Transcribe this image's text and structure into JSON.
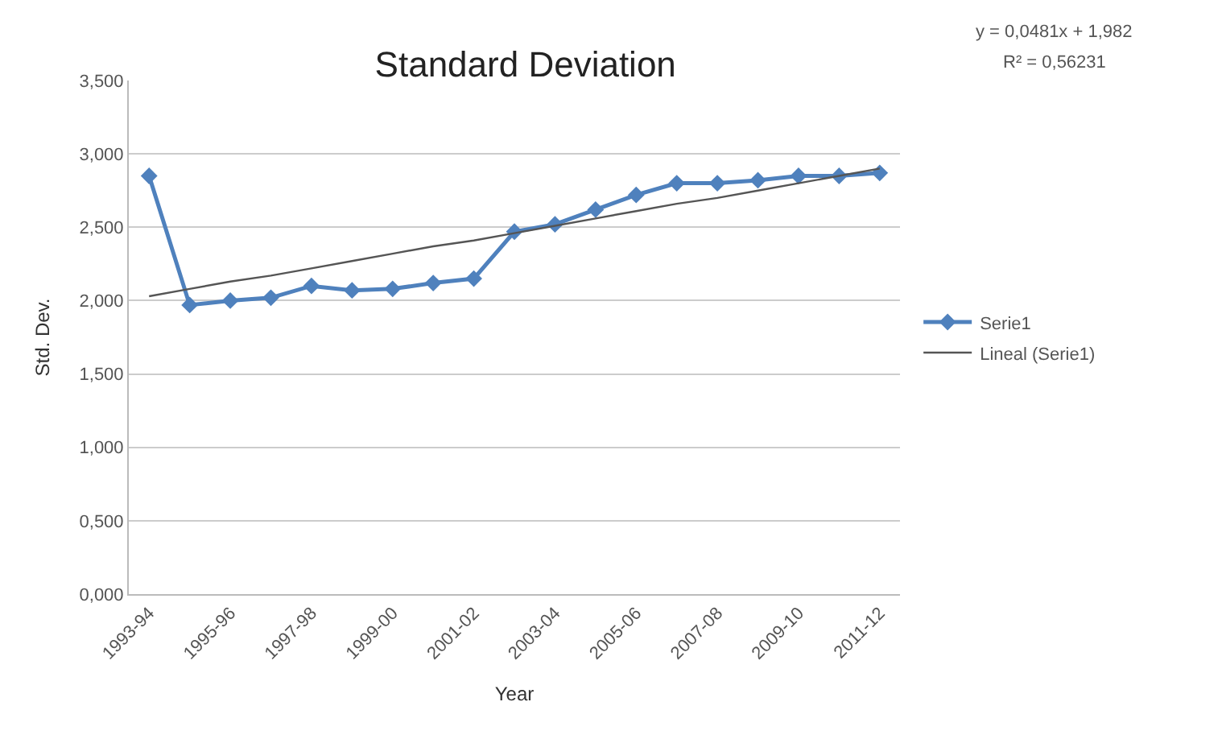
{
  "chart_data": {
    "type": "line",
    "title": "Standard Deviation",
    "xlabel": "Year",
    "ylabel": "Std. Dev.",
    "categories": [
      "1993-94",
      null,
      "1995-96",
      null,
      "1997-98",
      null,
      "1999-00",
      null,
      "2001-02",
      null,
      "2003-04",
      null,
      "2005-06",
      null,
      "2007-08",
      null,
      "2009-10",
      null,
      "2011-12"
    ],
    "series": [
      {
        "name": "Serie1",
        "color": "#4f81bd",
        "marker": "diamond",
        "values": [
          2.85,
          1.97,
          2.0,
          2.02,
          2.1,
          2.07,
          2.08,
          2.12,
          2.15,
          2.47,
          2.52,
          2.62,
          2.72,
          2.8,
          2.8,
          2.82,
          2.85,
          2.85,
          2.87
        ]
      },
      {
        "name": "Lineal (Serie1)",
        "color": "#555555",
        "marker": "none",
        "values": [
          2.03,
          2.08,
          2.13,
          2.17,
          2.22,
          2.27,
          2.32,
          2.37,
          2.41,
          2.46,
          2.51,
          2.56,
          2.61,
          2.66,
          2.7,
          2.75,
          2.8,
          2.85,
          2.9
        ]
      }
    ],
    "ylim": [
      0,
      3.5
    ],
    "yticks": [
      {
        "value": 0,
        "label": "0,000"
      },
      {
        "value": 0.5,
        "label": "0,500"
      },
      {
        "value": 1,
        "label": "1,000"
      },
      {
        "value": 1.5,
        "label": "1,500"
      },
      {
        "value": 2,
        "label": "2,000"
      },
      {
        "value": 2.5,
        "label": "2,500"
      },
      {
        "value": 3,
        "label": "3,000"
      },
      {
        "value": 3.5,
        "label": "3,500"
      }
    ],
    "grid": "y",
    "legend": "right",
    "annotations": [
      "y = 0,0481x + 1,982",
      "R² = 0,56231"
    ]
  }
}
